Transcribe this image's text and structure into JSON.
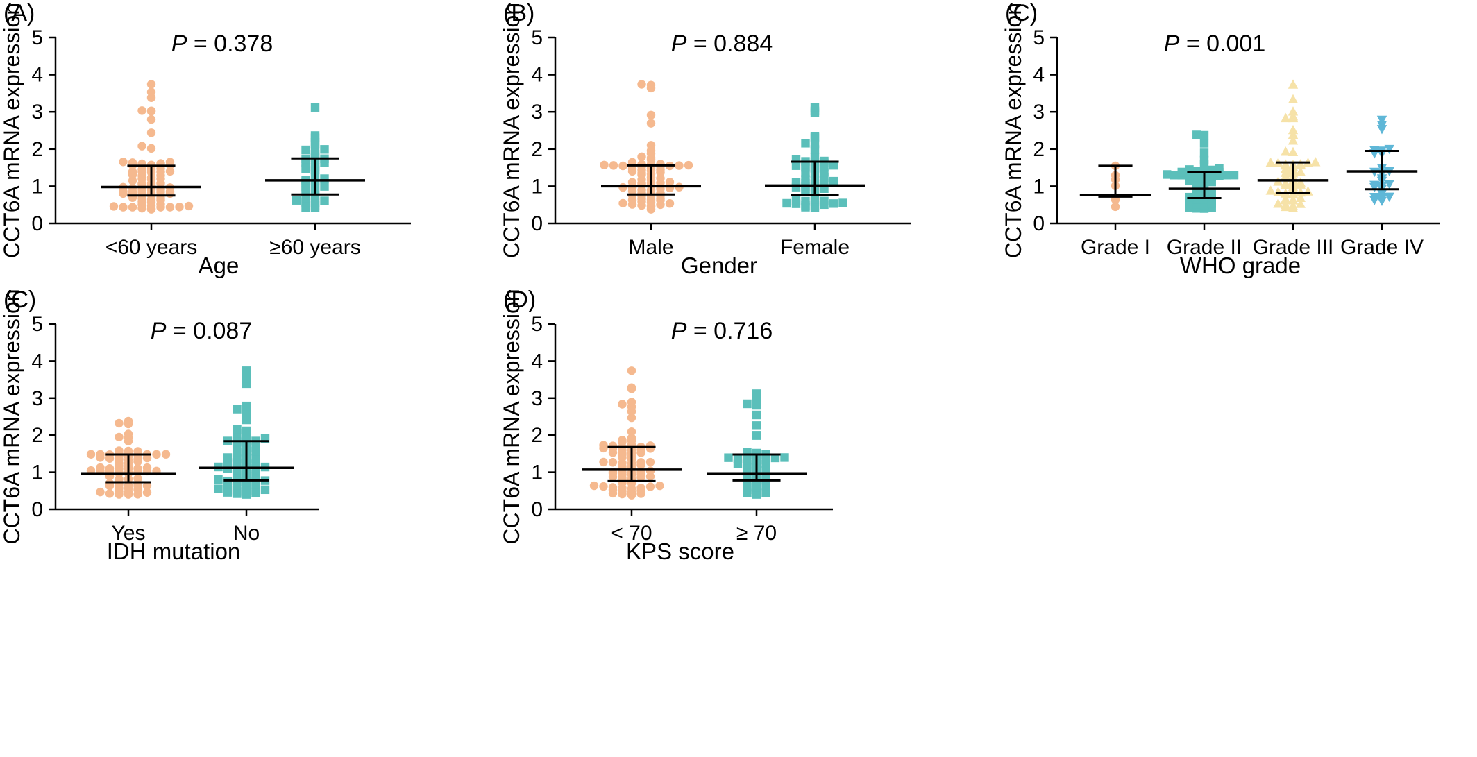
{
  "figure": {
    "panels": [
      {
        "label": "(A)",
        "p_value": "0.378",
        "p_symbol": "P",
        "xlabel": "Age",
        "ylabel": "CCT6A mRNA expression",
        "ylim": [
          0,
          5
        ],
        "yticks": [
          "0",
          "1",
          "2",
          "3",
          "4",
          "5"
        ],
        "groups": [
          {
            "name": "<60 years",
            "color": "#F5B98F",
            "marker": "circle",
            "n": 80,
            "median": 0.98,
            "q1": 0.75,
            "q3": 1.55,
            "min": 0.38,
            "max": 3.74
          },
          {
            "name": "≥60 years",
            "color": "#5BBFBA",
            "marker": "square",
            "n": 40,
            "median": 1.16,
            "q1": 0.78,
            "q3": 1.75,
            "min": 0.42,
            "max": 3.12
          }
        ]
      },
      {
        "label": "(B)",
        "p_value": "0.884",
        "p_symbol": "P",
        "xlabel": "Gender",
        "ylabel": "CCT6A mRNA expression",
        "ylim": [
          0,
          5
        ],
        "yticks": [
          "0",
          "1",
          "2",
          "3",
          "4",
          "5"
        ],
        "groups": [
          {
            "name": "Male",
            "color": "#F5B98F",
            "marker": "circle",
            "n": 75,
            "median": 1.0,
            "q1": 0.78,
            "q3": 1.56,
            "min": 0.38,
            "max": 3.74
          },
          {
            "name": "Female",
            "color": "#5BBFBA",
            "marker": "square",
            "n": 55,
            "median": 1.02,
            "q1": 0.76,
            "q3": 1.66,
            "min": 0.42,
            "max": 3.12
          }
        ]
      },
      {
        "label": "(C)",
        "p_value": "0.001",
        "p_symbol": "P",
        "xlabel": "WHO grade",
        "ylabel": "CCT6A mRNA expression",
        "ylim": [
          0,
          5
        ],
        "yticks": [
          "0",
          "1",
          "2",
          "3",
          "4",
          "5"
        ],
        "groups": [
          {
            "name": "Grade I",
            "color": "#F5B98F",
            "marker": "circle",
            "n": 6,
            "median": 0.76,
            "q1": 0.72,
            "q3": 1.55,
            "min": 0.45,
            "max": 1.55
          },
          {
            "name": "Grade II",
            "color": "#5BBFBA",
            "marker": "square",
            "n": 55,
            "median": 0.93,
            "q1": 0.68,
            "q3": 1.38,
            "min": 0.4,
            "max": 2.38
          },
          {
            "name": "Grade III",
            "color": "#F6E2A8",
            "marker": "triangle-up",
            "n": 55,
            "median": 1.16,
            "q1": 0.82,
            "q3": 1.64,
            "min": 0.42,
            "max": 3.74
          },
          {
            "name": "Grade IV",
            "color": "#5FB7D7",
            "marker": "triangle-down",
            "n": 25,
            "median": 1.4,
            "q1": 0.92,
            "q3": 1.95,
            "min": 0.6,
            "max": 2.78
          }
        ]
      },
      {
        "label": "(C)",
        "p_value": "0.087",
        "p_symbol": "P",
        "xlabel": "IDH mutation",
        "ylabel": "CCT6A mRNA expression",
        "ylim": [
          0,
          5
        ],
        "yticks": [
          "0",
          "1",
          "2",
          "3",
          "4",
          "5"
        ],
        "groups": [
          {
            "name": "Yes",
            "color": "#F5B98F",
            "marker": "circle",
            "n": 70,
            "median": 0.97,
            "q1": 0.73,
            "q3": 1.48,
            "min": 0.4,
            "max": 2.38
          },
          {
            "name": "No",
            "color": "#5BBFBA",
            "marker": "square",
            "n": 75,
            "median": 1.12,
            "q1": 0.78,
            "q3": 1.84,
            "min": 0.4,
            "max": 3.74
          }
        ]
      },
      {
        "label": "(D)",
        "p_value": "0.716",
        "p_symbol": "P",
        "xlabel": "KPS score",
        "ylabel": "CCT6A mRNA expression",
        "ylim": [
          0,
          5
        ],
        "yticks": [
          "0",
          "1",
          "2",
          "3",
          "4",
          "5"
        ],
        "groups": [
          {
            "name": "< 70",
            "color": "#F5B98F",
            "marker": "circle",
            "n": 80,
            "median": 1.07,
            "q1": 0.76,
            "q3": 1.68,
            "min": 0.38,
            "max": 3.74
          },
          {
            "name": "≥ 70",
            "color": "#5BBFBA",
            "marker": "square",
            "n": 45,
            "median": 0.97,
            "q1": 0.78,
            "q3": 1.48,
            "min": 0.4,
            "max": 3.12
          }
        ]
      }
    ]
  },
  "chart_data": [
    {
      "type": "scatter",
      "title": "",
      "xlabel": "Age",
      "ylabel": "CCT6A mRNA expression",
      "ylim": [
        0,
        5
      ],
      "categories": [
        "<60 years",
        "≥60 years"
      ],
      "series": [
        {
          "name": "<60 years",
          "median": 0.98,
          "q1": 0.75,
          "q3": 1.55,
          "range": [
            0.38,
            3.74
          ]
        },
        {
          "name": "≥60 years",
          "median": 1.16,
          "q1": 0.78,
          "q3": 1.75,
          "range": [
            0.42,
            3.12
          ]
        }
      ],
      "annotations": [
        "P = 0.378"
      ]
    },
    {
      "type": "scatter",
      "title": "",
      "xlabel": "Gender",
      "ylabel": "CCT6A mRNA expression",
      "ylim": [
        0,
        5
      ],
      "categories": [
        "Male",
        "Female"
      ],
      "series": [
        {
          "name": "Male",
          "median": 1.0,
          "q1": 0.78,
          "q3": 1.56,
          "range": [
            0.38,
            3.74
          ]
        },
        {
          "name": "Female",
          "median": 1.02,
          "q1": 0.76,
          "q3": 1.66,
          "range": [
            0.42,
            3.12
          ]
        }
      ],
      "annotations": [
        "P = 0.884"
      ]
    },
    {
      "type": "scatter",
      "title": "",
      "xlabel": "WHO grade",
      "ylabel": "CCT6A mRNA expression",
      "ylim": [
        0,
        5
      ],
      "categories": [
        "Grade I",
        "Grade II",
        "Grade III",
        "Grade IV"
      ],
      "series": [
        {
          "name": "Grade I",
          "median": 0.76,
          "q1": 0.72,
          "q3": 1.55,
          "range": [
            0.45,
            1.55
          ]
        },
        {
          "name": "Grade II",
          "median": 0.93,
          "q1": 0.68,
          "q3": 1.38,
          "range": [
            0.4,
            2.38
          ]
        },
        {
          "name": "Grade III",
          "median": 1.16,
          "q1": 0.82,
          "q3": 1.64,
          "range": [
            0.42,
            3.74
          ]
        },
        {
          "name": "Grade IV",
          "median": 1.4,
          "q1": 0.92,
          "q3": 1.95,
          "range": [
            0.6,
            2.78
          ]
        }
      ],
      "annotations": [
        "P = 0.001"
      ]
    },
    {
      "type": "scatter",
      "title": "",
      "xlabel": "IDH mutation",
      "ylabel": "CCT6A mRNA expression",
      "ylim": [
        0,
        5
      ],
      "categories": [
        "Yes",
        "No"
      ],
      "series": [
        {
          "name": "Yes",
          "median": 0.97,
          "q1": 0.73,
          "q3": 1.48,
          "range": [
            0.4,
            2.38
          ]
        },
        {
          "name": "No",
          "median": 1.12,
          "q1": 0.78,
          "q3": 1.84,
          "range": [
            0.4,
            3.74
          ]
        }
      ],
      "annotations": [
        "P = 0.087"
      ]
    },
    {
      "type": "scatter",
      "title": "",
      "xlabel": "KPS score",
      "ylabel": "CCT6A mRNA expression",
      "ylim": [
        0,
        5
      ],
      "categories": [
        "< 70",
        "≥ 70"
      ],
      "series": [
        {
          "name": "< 70",
          "median": 1.07,
          "q1": 0.76,
          "q3": 1.68,
          "range": [
            0.38,
            3.74
          ]
        },
        {
          "name": "≥ 70",
          "median": 0.97,
          "q1": 0.78,
          "q3": 1.48,
          "range": [
            0.4,
            3.12
          ]
        }
      ],
      "annotations": [
        "P = 0.716"
      ]
    }
  ]
}
